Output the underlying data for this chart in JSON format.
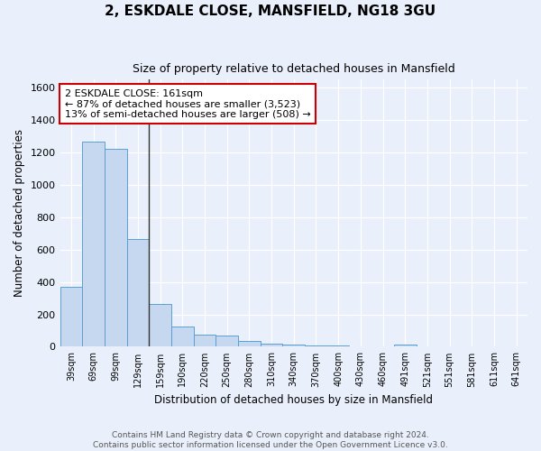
{
  "title": "2, ESKDALE CLOSE, MANSFIELD, NG18 3GU",
  "subtitle": "Size of property relative to detached houses in Mansfield",
  "xlabel": "Distribution of detached houses by size in Mansfield",
  "ylabel": "Number of detached properties",
  "categories": [
    "39sqm",
    "69sqm",
    "99sqm",
    "129sqm",
    "159sqm",
    "190sqm",
    "220sqm",
    "250sqm",
    "280sqm",
    "310sqm",
    "340sqm",
    "370sqm",
    "400sqm",
    "430sqm",
    "460sqm",
    "491sqm",
    "521sqm",
    "551sqm",
    "581sqm",
    "611sqm",
    "641sqm"
  ],
  "values": [
    370,
    1270,
    1220,
    665,
    265,
    125,
    75,
    70,
    35,
    20,
    15,
    10,
    10,
    0,
    0,
    15,
    0,
    0,
    0,
    0,
    0
  ],
  "bar_color": "#c5d8f0",
  "bar_edge_color": "#5a9fd4",
  "vline_x": 4,
  "vline_color": "#333333",
  "annotation_text": "2 ESKDALE CLOSE: 161sqm\n← 87% of detached houses are smaller (3,523)\n13% of semi-detached houses are larger (508) →",
  "annotation_box_color": "#ffffff",
  "annotation_box_edge": "#cc0000",
  "ylim": [
    0,
    1650
  ],
  "yticks": [
    0,
    200,
    400,
    600,
    800,
    1000,
    1200,
    1400,
    1600
  ],
  "bg_color": "#eaf0fb",
  "grid_color": "#ffffff",
  "footer": "Contains HM Land Registry data © Crown copyright and database right 2024.\nContains public sector information licensed under the Open Government Licence v3.0."
}
